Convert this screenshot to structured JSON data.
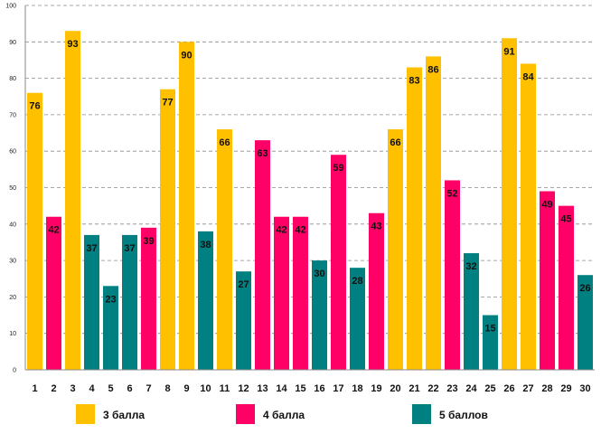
{
  "chart_data": {
    "type": "bar",
    "title": "",
    "xlabel": "",
    "ylabel": "",
    "ylim": [
      0,
      100
    ],
    "yticks": [
      "0",
      "10",
      "20",
      "30",
      "40",
      "50",
      "60",
      "70",
      "80",
      "90",
      "100"
    ],
    "grid": true,
    "categories": [
      "1",
      "2",
      "3",
      "4",
      "5",
      "6",
      "7",
      "8",
      "9",
      "10",
      "11",
      "12",
      "13",
      "14",
      "15",
      "16",
      "17",
      "18",
      "19",
      "20",
      "21",
      "22",
      "23",
      "24",
      "25",
      "26",
      "27",
      "28",
      "29",
      "30"
    ],
    "values": [
      76,
      42,
      93,
      37,
      23,
      37,
      39,
      77,
      90,
      38,
      66,
      27,
      63,
      42,
      42,
      30,
      59,
      28,
      43,
      66,
      83,
      86,
      52,
      32,
      15,
      91,
      84,
      49,
      45,
      26
    ],
    "series_index": [
      0,
      1,
      0,
      2,
      2,
      2,
      1,
      0,
      0,
      2,
      0,
      2,
      1,
      1,
      1,
      2,
      1,
      2,
      1,
      0,
      0,
      0,
      1,
      2,
      2,
      0,
      0,
      1,
      1,
      2
    ],
    "series": [
      {
        "name": "3 балла",
        "color": "#FFC000"
      },
      {
        "name": "4 балла",
        "color": "#FF0066"
      },
      {
        "name": "5 баллов",
        "color": "#008080"
      }
    ],
    "legend": "bottom"
  }
}
